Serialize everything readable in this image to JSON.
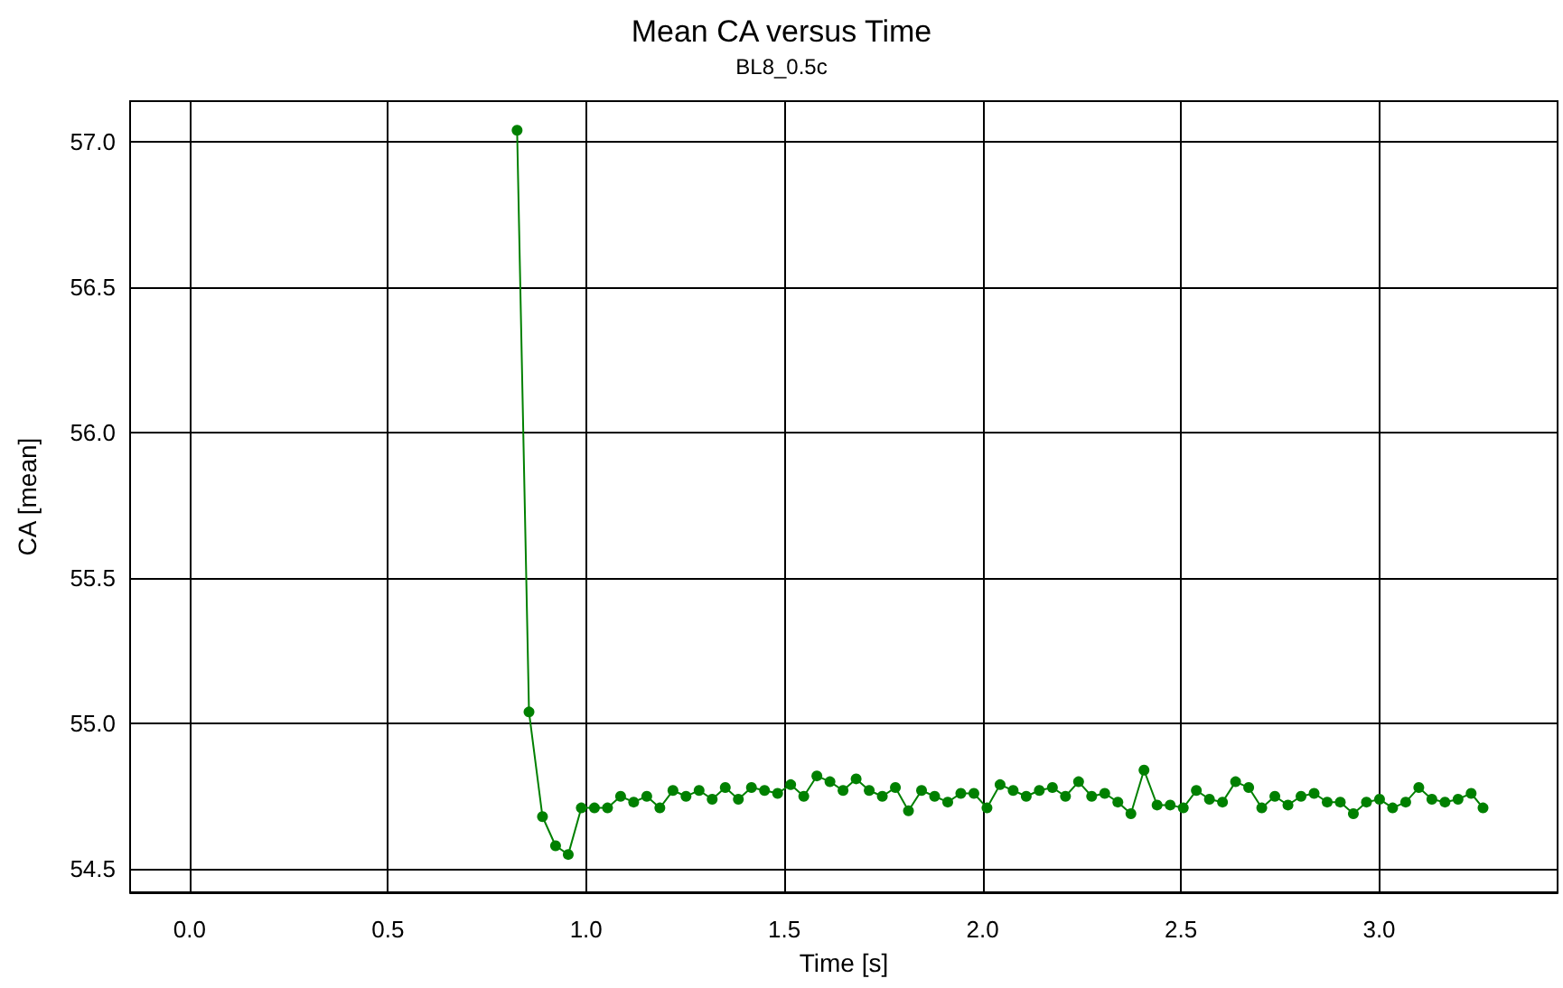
{
  "chart_data": {
    "type": "line",
    "title": "Mean CA versus Time",
    "subtitle": "BL8_0.5c",
    "xlabel": "Time [s]",
    "ylabel": "CA [mean]",
    "x": [
      0.826,
      0.856,
      0.89,
      0.923,
      0.955,
      0.988,
      1.021,
      1.054,
      1.087,
      1.12,
      1.153,
      1.186,
      1.219,
      1.252,
      1.285,
      1.318,
      1.351,
      1.384,
      1.417,
      1.45,
      1.483,
      1.516,
      1.549,
      1.582,
      1.615,
      1.648,
      1.681,
      1.714,
      1.747,
      1.78,
      1.813,
      1.846,
      1.879,
      1.912,
      1.945,
      1.978,
      2.011,
      2.044,
      2.077,
      2.11,
      2.143,
      2.176,
      2.209,
      2.242,
      2.275,
      2.308,
      2.341,
      2.374,
      2.407,
      2.44,
      2.473,
      2.506,
      2.539,
      2.572,
      2.605,
      2.638,
      2.671,
      2.704,
      2.737,
      2.77,
      2.803,
      2.836,
      2.869,
      2.902,
      2.935,
      2.968,
      3.001,
      3.034,
      3.067,
      3.1,
      3.133,
      3.166,
      3.199,
      3.232,
      3.262
    ],
    "series": [
      {
        "color": "#008000",
        "values": [
          57.04,
          55.04,
          54.68,
          54.58,
          54.55,
          54.71,
          54.71,
          54.71,
          54.75,
          54.73,
          54.75,
          54.71,
          54.77,
          54.75,
          54.77,
          54.74,
          54.78,
          54.74,
          54.78,
          54.77,
          54.76,
          54.79,
          54.75,
          54.82,
          54.8,
          54.77,
          54.81,
          54.77,
          54.75,
          54.78,
          54.7,
          54.77,
          54.75,
          54.73,
          54.76,
          54.76,
          54.71,
          54.79,
          54.77,
          54.75,
          54.77,
          54.78,
          54.75,
          54.8,
          54.75,
          54.76,
          54.73,
          54.69,
          54.84,
          54.72,
          54.72,
          54.71,
          54.77,
          54.74,
          54.73,
          54.8,
          54.78,
          54.71,
          54.75,
          54.72,
          54.75,
          54.76,
          54.73,
          54.73,
          54.69,
          54.73,
          54.74,
          54.71,
          54.73,
          54.78,
          54.74,
          54.73,
          54.74,
          54.76,
          54.71
        ]
      }
    ],
    "xlim": [
      -0.15,
      3.45
    ],
    "xticks": [
      {
        "value": 0,
        "label": "0.0"
      },
      0.5,
      {
        "value": 1,
        "label": "1.0"
      },
      1.5,
      {
        "value": 2,
        "label": "2.0"
      },
      2.5,
      {
        "value": 3,
        "label": "3.0"
      }
    ],
    "ylim": [
      54.42,
      57.14
    ],
    "yticks": [
      54.5,
      {
        "value": 55,
        "label": "55.0"
      },
      55.5,
      {
        "value": 56,
        "label": "56.0"
      },
      56.5,
      {
        "value": 57,
        "label": "57.0"
      }
    ],
    "grid": true,
    "marker": "circle",
    "line_style": "solid"
  }
}
